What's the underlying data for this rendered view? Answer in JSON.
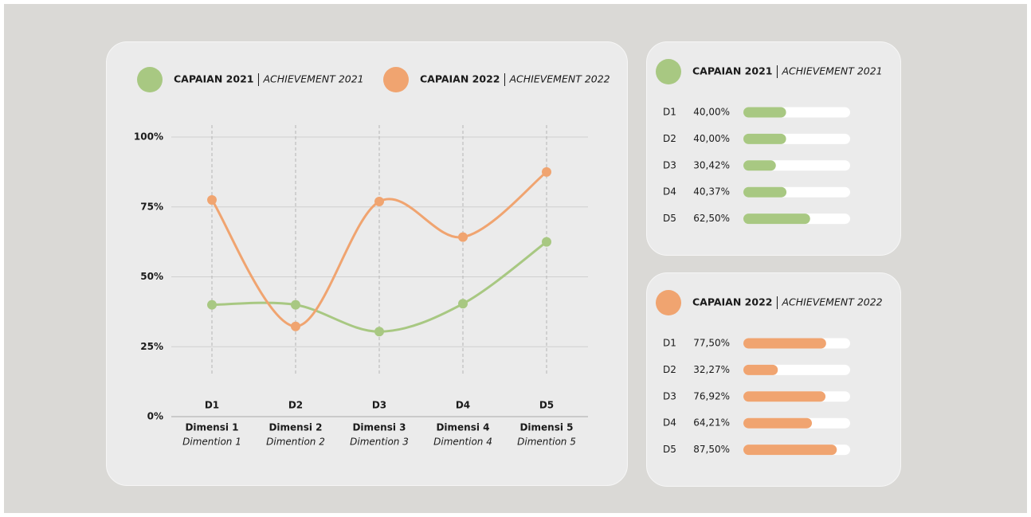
{
  "chart_data": [
    {
      "type": "line",
      "categories": [
        "D1",
        "D2",
        "D3",
        "D4",
        "D5"
      ],
      "category_labels": [
        "Dimensi 1",
        "Dimensi 2",
        "Dimensi 3",
        "Dimensi 4",
        "Dimensi 5"
      ],
      "category_labels_en": [
        "Dimention 1",
        "Dimention 2",
        "Dimention 3",
        "Dimention 4",
        "Dimention 5"
      ],
      "series": [
        {
          "name": "CAPAIAN 2021",
          "name_en": "ACHIEVEMENT 2021",
          "color": "#a8c882",
          "values": [
            40,
            40,
            30.42,
            40.37,
            62.5
          ]
        },
        {
          "name": "CAPAIAN 2022",
          "name_en": "ACHIEVEMENT 2022",
          "color": "#f0a470",
          "values": [
            77.5,
            32.27,
            76.92,
            64.21,
            87.5
          ]
        }
      ],
      "ylim": [
        0,
        100
      ],
      "yticks": [
        {
          "value": 0,
          "label": "0%"
        },
        {
          "value": 25,
          "label": "25%"
        },
        {
          "value": 50,
          "label": "50%"
        },
        {
          "value": 75,
          "label": "75%"
        },
        {
          "value": 100,
          "label": "100%"
        }
      ],
      "grid": true
    },
    {
      "type": "bar",
      "orientation": "horizontal",
      "title": "CAPAIAN 2021",
      "subtitle": "ACHIEVEMENT 2021",
      "color": "#a8c882",
      "categories": [
        "D1",
        "D2",
        "D3",
        "D4",
        "D5"
      ],
      "values": [
        40,
        40,
        30.42,
        40.37,
        62.5
      ],
      "value_labels": [
        "40,00%",
        "40,00%",
        "30,42%",
        "40,37%",
        "62,50%"
      ],
      "xlim": [
        0,
        100
      ]
    },
    {
      "type": "bar",
      "orientation": "horizontal",
      "title": "CAPAIAN 2022",
      "subtitle": "ACHIEVEMENT 2022",
      "color": "#f0a470",
      "categories": [
        "D1",
        "D2",
        "D3",
        "D4",
        "D5"
      ],
      "values": [
        77.5,
        32.27,
        76.92,
        64.21,
        87.5
      ],
      "value_labels": [
        "77,50%",
        "32,27%",
        "76,92%",
        "64,21%",
        "87,50%"
      ],
      "xlim": [
        0,
        100
      ]
    }
  ]
}
